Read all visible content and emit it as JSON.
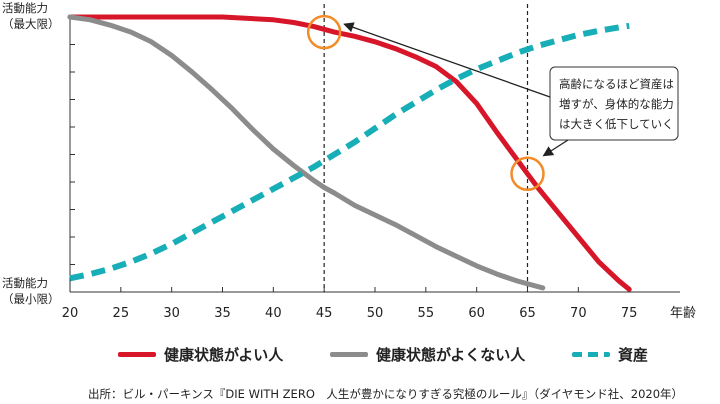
{
  "chart_data": {
    "type": "line",
    "x_unit": "年齢",
    "xlim": [
      20,
      80
    ],
    "x_ticks": [
      20,
      25,
      30,
      35,
      40,
      45,
      50,
      55,
      60,
      65,
      70,
      75
    ],
    "y_max_label": [
      "活動能力",
      "（最大限）"
    ],
    "y_min_label": [
      "活動能力",
      "（最小限）"
    ],
    "ylim": [
      0,
      1
    ],
    "grid": false,
    "legend_position": "bottom",
    "series": [
      {
        "name": "健康状態がよい人",
        "color": "#d7162a",
        "style": "solid",
        "x": [
          20,
          25,
          30,
          35,
          40,
          42,
          44,
          46,
          48,
          50,
          52,
          54,
          56,
          58,
          60,
          62,
          64,
          65,
          66,
          68,
          70,
          72,
          74,
          75
        ],
        "y": [
          1.0,
          1.0,
          1.0,
          1.0,
          0.99,
          0.98,
          0.965,
          0.945,
          0.93,
          0.91,
          0.885,
          0.855,
          0.82,
          0.765,
          0.685,
          0.58,
          0.48,
          0.43,
          0.38,
          0.29,
          0.2,
          0.11,
          0.04,
          0.01
        ]
      },
      {
        "name": "健康状態がよくない人",
        "color": "#8c8c8c",
        "style": "solid",
        "x": [
          20,
          22,
          24,
          26,
          28,
          30,
          32,
          34,
          36,
          38,
          40,
          42,
          44,
          45,
          46,
          48,
          50,
          52,
          54,
          56,
          58,
          60,
          62,
          64,
          66.5
        ],
        "y": [
          1.0,
          0.99,
          0.97,
          0.945,
          0.91,
          0.86,
          0.8,
          0.735,
          0.665,
          0.59,
          0.52,
          0.46,
          0.405,
          0.38,
          0.36,
          0.315,
          0.28,
          0.245,
          0.205,
          0.165,
          0.13,
          0.095,
          0.065,
          0.04,
          0.015
        ]
      },
      {
        "name": "資産",
        "color": "#17aeb7",
        "style": "dashed",
        "x": [
          20,
          22,
          24,
          26,
          28,
          30,
          32,
          34,
          36,
          38,
          40,
          42,
          44,
          46,
          48,
          50,
          52,
          54,
          56,
          58,
          60,
          62,
          64,
          66,
          68,
          70,
          72,
          74,
          75
        ],
        "y": [
          0.05,
          0.065,
          0.085,
          0.11,
          0.14,
          0.175,
          0.215,
          0.255,
          0.295,
          0.335,
          0.375,
          0.415,
          0.455,
          0.5,
          0.545,
          0.595,
          0.645,
          0.69,
          0.735,
          0.775,
          0.81,
          0.84,
          0.87,
          0.895,
          0.915,
          0.935,
          0.95,
          0.962,
          0.968
        ]
      }
    ],
    "reference_lines_x": [
      45,
      65
    ],
    "highlight_points": [
      {
        "x": 45,
        "y": 0.945,
        "color": "#f28c28"
      },
      {
        "x": 65,
        "y": 0.43,
        "color": "#f28c28"
      }
    ],
    "annotation": {
      "lines": [
        "高齢になるほど資産は",
        "増すが、身体的な能力",
        "は大きく低下していく"
      ]
    }
  },
  "source_note": "出所：ビル・パーキンス『DIE WITH ZERO　人生が豊かになりすぎる究極のルール』（ダイヤモンド社、2020年）"
}
